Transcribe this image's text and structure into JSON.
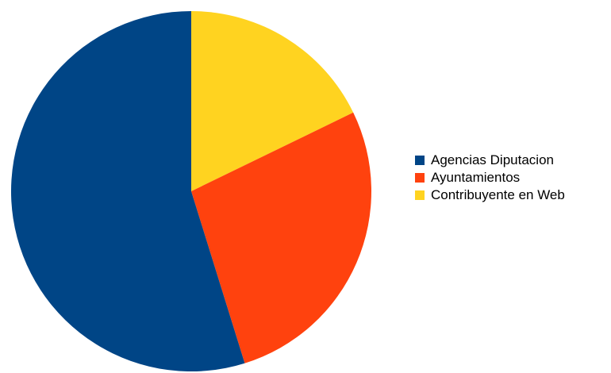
{
  "chart_data": {
    "type": "pie",
    "title": "",
    "start_angle_deg": 0,
    "direction": "clockwise",
    "legend_position": "right",
    "slices": [
      {
        "label": "Contribuyente en Web",
        "value": 17.8,
        "color": "#FFD320"
      },
      {
        "label": "Ayuntamientos",
        "value": 27.4,
        "color": "#FF420E"
      },
      {
        "label": "Agencias Diputacion",
        "value": 54.8,
        "color": "#004586"
      }
    ],
    "legend": [
      {
        "label": "Agencias Diputacion",
        "color": "#004586"
      },
      {
        "label": "Ayuntamientos",
        "color": "#FF420E"
      },
      {
        "label": "Contribuyente en Web",
        "color": "#FFD320"
      }
    ]
  }
}
